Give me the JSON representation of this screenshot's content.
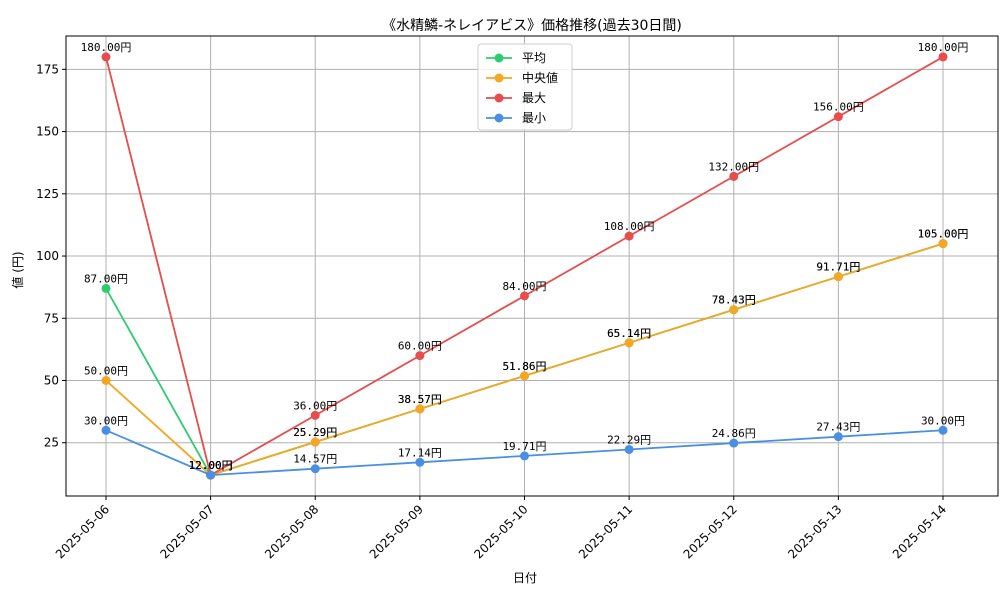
{
  "chart_data": {
    "type": "line",
    "title": "《水精鱗-ネレイアビス》価格推移(過去30日間)",
    "xlabel": "日付",
    "ylabel": "値 (円)",
    "categories": [
      "2025-05-06",
      "2025-05-07",
      "2025-05-08",
      "2025-05-09",
      "2025-05-10",
      "2025-05-11",
      "2025-05-12",
      "2025-05-13",
      "2025-05-14"
    ],
    "ylim": [
      3.6,
      188.4
    ],
    "yticks": [
      25,
      50,
      75,
      100,
      125,
      150,
      175
    ],
    "grid": true,
    "legend_position": "top-center",
    "series": [
      {
        "name": "平均",
        "color": "#2ecc71",
        "values": [
          87.0,
          12.0,
          25.29,
          38.57,
          51.86,
          65.14,
          78.43,
          91.71,
          105.0
        ],
        "labels": [
          "87.00円",
          "12.00円",
          "25.29円",
          "38.57円",
          "51.86円",
          "65.14円",
          "78.43円",
          "91.71円",
          "105.00円"
        ]
      },
      {
        "name": "中央値",
        "color": "#f5a623",
        "values": [
          50.0,
          12.0,
          25.29,
          38.57,
          51.86,
          65.14,
          78.43,
          91.71,
          105.0
        ],
        "labels": [
          "50.00円",
          "12.00円",
          "25.29円",
          "38.57円",
          "51.86円",
          "65.14円",
          "78.43円",
          "91.71円",
          "105.00円"
        ]
      },
      {
        "name": "最大",
        "color": "#e84c4c",
        "values": [
          180.0,
          12.0,
          36.0,
          60.0,
          84.0,
          108.0,
          132.0,
          156.0,
          180.0
        ],
        "labels": [
          "180.00円",
          "12.00円",
          "36.00円",
          "60.00円",
          "84.00円",
          "108.00円",
          "132.00円",
          "156.00円",
          "180.00円"
        ]
      },
      {
        "name": "最小",
        "color": "#4a90e2",
        "values": [
          30.0,
          12.0,
          14.57,
          17.14,
          19.71,
          22.29,
          24.86,
          27.43,
          30.0
        ],
        "labels": [
          "30.00円",
          "12.00円",
          "14.57円",
          "17.14円",
          "19.71円",
          "22.29円",
          "24.86円",
          "27.43円",
          "30.00円"
        ]
      }
    ]
  }
}
